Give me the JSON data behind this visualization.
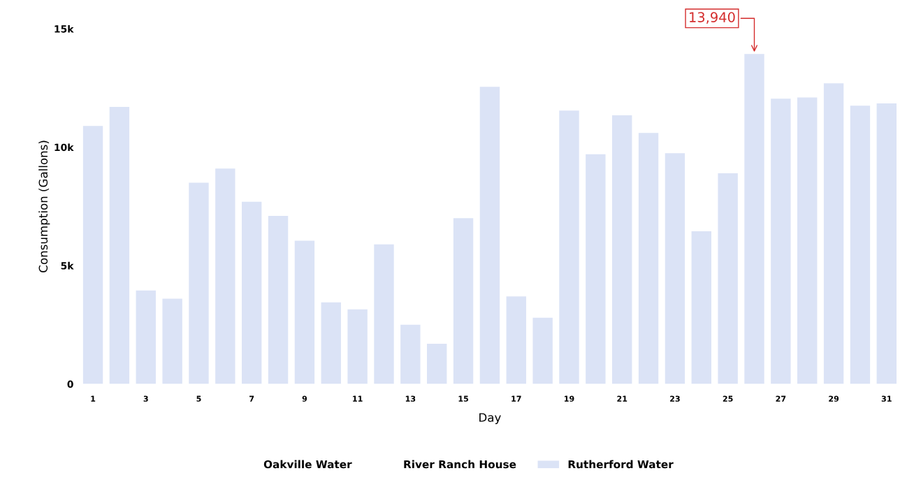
{
  "chart_data": {
    "type": "bar",
    "xlabel": "Day",
    "ylabel": "Consumption (Gallons)",
    "categories": [
      "1",
      null,
      "3",
      null,
      "5",
      null,
      "7",
      null,
      "9",
      null,
      "11",
      null,
      "13",
      null,
      "15",
      null,
      "17",
      null,
      "19",
      null,
      "21",
      null,
      "23",
      null,
      "25",
      null,
      "27",
      null,
      "29",
      null,
      "31"
    ],
    "series": [
      {
        "name": "Oakville Water",
        "values": [
          null,
          null,
          null,
          null,
          null,
          null,
          null,
          null,
          null,
          null,
          null,
          null,
          null,
          null,
          null,
          null,
          null,
          null,
          null,
          null,
          null,
          null,
          null,
          null,
          null,
          null,
          null,
          null,
          null,
          null,
          null
        ]
      },
      {
        "name": "River Ranch House",
        "values": [
          null,
          null,
          null,
          null,
          null,
          null,
          null,
          null,
          null,
          null,
          null,
          null,
          null,
          null,
          null,
          null,
          null,
          null,
          null,
          null,
          null,
          null,
          null,
          null,
          null,
          null,
          null,
          null,
          null,
          null,
          null
        ]
      },
      {
        "name": "Rutherford Water",
        "color": "#dbe3f6",
        "values": [
          10900,
          11700,
          3950,
          3600,
          8500,
          9100,
          7700,
          7100,
          6050,
          3450,
          3150,
          5900,
          2500,
          1700,
          7000,
          12550,
          3700,
          2800,
          11550,
          9700,
          11350,
          10600,
          9750,
          6450,
          8900,
          13940,
          12050,
          12100,
          12700,
          11750,
          11850
        ],
        "value_labels": [
          null,
          null,
          null,
          null,
          null,
          null,
          null,
          null,
          null,
          null,
          null,
          null,
          null,
          null,
          null,
          null,
          null,
          null,
          null,
          null,
          null,
          null,
          null,
          null,
          null,
          "13,940",
          null,
          null,
          null,
          null,
          null
        ]
      }
    ],
    "ylim": [
      0,
      15000
    ],
    "yticks": [
      {
        "value": 0,
        "label": "0"
      },
      {
        "value": 5000,
        "label": "5k"
      },
      {
        "value": 10000,
        "label": "10k"
      },
      {
        "value": 15000,
        "label": "15k"
      }
    ],
    "grid": false,
    "legend": "bottom"
  }
}
